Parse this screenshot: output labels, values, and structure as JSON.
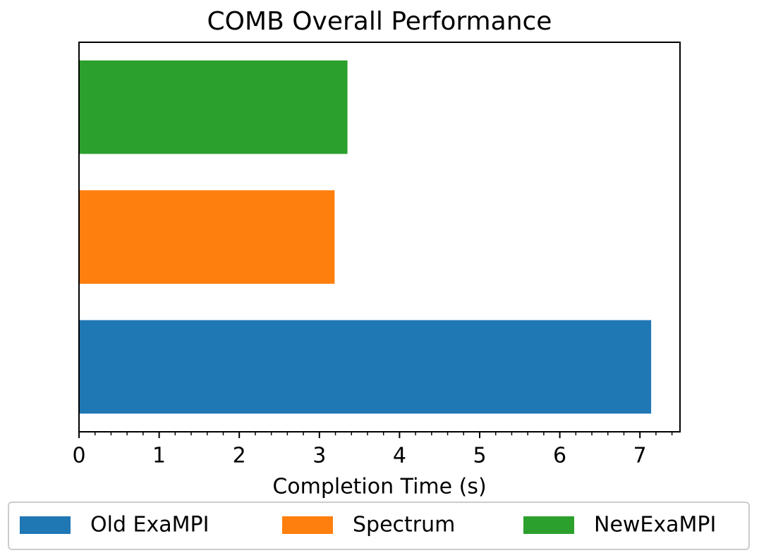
{
  "chart_data": {
    "type": "barh",
    "title": "COMB Overall Performance",
    "xlabel": "Completion Time (s)",
    "series": [
      {
        "name": "Old ExaMPI",
        "color": "#1f77b4",
        "values": [
          7.14
        ]
      },
      {
        "name": "Spectrum",
        "color": "#ff7f0e",
        "values": [
          3.19
        ]
      },
      {
        "name": "NewExaMPI",
        "color": "#2ca02c",
        "values": [
          3.35
        ]
      }
    ],
    "xlim": [
      0,
      7.5
    ],
    "xticks": [
      0,
      1,
      2,
      3,
      4,
      5,
      6,
      7
    ],
    "xminorticks": [
      0.2,
      0.4,
      0.6,
      0.8,
      1.2,
      1.4,
      1.6,
      1.8,
      2.2,
      2.4,
      2.6,
      2.8,
      3.2,
      3.4,
      3.6,
      3.8,
      4.2,
      4.4,
      4.6,
      4.8,
      5.2,
      5.4,
      5.6,
      5.8,
      6.2,
      6.4,
      6.6,
      6.8,
      7.2,
      7.4
    ],
    "legend": "bottom",
    "grid": false
  }
}
